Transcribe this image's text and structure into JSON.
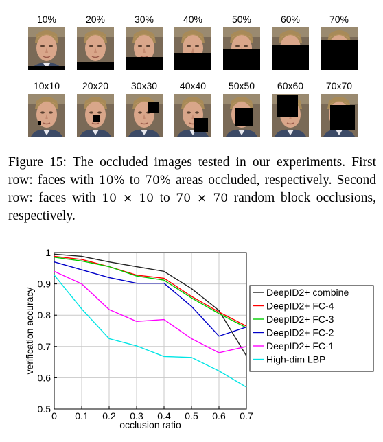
{
  "figure": {
    "rows": [
      {
        "name": "area-occlusion",
        "items": [
          {
            "label": "10%",
            "occlusion": {
              "kind": "bottom",
              "fraction": 0.1
            }
          },
          {
            "label": "20%",
            "occlusion": {
              "kind": "bottom",
              "fraction": 0.2
            }
          },
          {
            "label": "30%",
            "occlusion": {
              "kind": "bottom",
              "fraction": 0.3
            }
          },
          {
            "label": "40%",
            "occlusion": {
              "kind": "bottom",
              "fraction": 0.4
            }
          },
          {
            "label": "50%",
            "occlusion": {
              "kind": "bottom",
              "fraction": 0.5
            }
          },
          {
            "label": "60%",
            "occlusion": {
              "kind": "bottom",
              "fraction": 0.6
            }
          },
          {
            "label": "70%",
            "occlusion": {
              "kind": "bottom",
              "fraction": 0.7
            }
          }
        ]
      },
      {
        "name": "block-occlusion",
        "items": [
          {
            "label": "10x10",
            "occlusion": {
              "kind": "block",
              "size": 10,
              "fx": 0.28,
              "fy": 0.7
            }
          },
          {
            "label": "20x20",
            "occlusion": {
              "kind": "block",
              "size": 20,
              "fx": 0.55,
              "fy": 0.6
            }
          },
          {
            "label": "30x30",
            "occlusion": {
              "kind": "block",
              "size": 30,
              "fx": 0.85,
              "fy": 0.25
            }
          },
          {
            "label": "40x40",
            "occlusion": {
              "kind": "block",
              "size": 40,
              "fx": 0.85,
              "fy": 0.85
            }
          },
          {
            "label": "50x50",
            "occlusion": {
              "kind": "block",
              "size": 50,
              "fx": 0.6,
              "fy": 0.55
            }
          },
          {
            "label": "60x60",
            "occlusion": {
              "kind": "block",
              "size": 60,
              "fx": 0.3,
              "fy": 0.05
            }
          },
          {
            "label": "70x70",
            "occlusion": {
              "kind": "block",
              "size": 70,
              "fx": 0.8,
              "fy": 0.6
            }
          }
        ]
      }
    ],
    "caption": {
      "lead": "Figure 15: The occluded images tested in our experiments. First row: faces with ",
      "m1": "10%",
      "mid1": " to ",
      "m2": "70%",
      "mid2": " areas occluded, respectively. Second row: faces with ",
      "m3": "10 × 10",
      "mid3": " to ",
      "m4": "70 × 70",
      "tail": " random block occlusions, respectively."
    }
  },
  "chart_data": {
    "type": "line",
    "title": "",
    "xlabel": "occlusion ratio",
    "ylabel": "verification accuracy",
    "x": [
      0,
      0.1,
      0.2,
      0.3,
      0.4,
      0.5,
      0.6,
      0.7
    ],
    "xlim": [
      0,
      0.7
    ],
    "ylim": [
      0.5,
      1
    ],
    "xticks": [
      "0",
      "0.1",
      "0.2",
      "0.3",
      "0.4",
      "0.5",
      "0.6",
      "0.7"
    ],
    "yticks": [
      "0.5",
      "0.6",
      "0.7",
      "0.8",
      "0.9",
      "1"
    ],
    "grid": true,
    "legend_position": "right",
    "series": [
      {
        "name": "DeepID2+ combine",
        "color": "#222222",
        "values": [
          0.995,
          0.988,
          0.97,
          0.955,
          0.94,
          0.885,
          0.815,
          0.67
        ]
      },
      {
        "name": "DeepID2+ FC-4",
        "color": "#ff0000",
        "values": [
          0.988,
          0.978,
          0.955,
          0.928,
          0.918,
          0.86,
          0.81,
          0.765
        ]
      },
      {
        "name": "DeepID2+ FC-3",
        "color": "#00cc00",
        "values": [
          0.985,
          0.973,
          0.955,
          0.925,
          0.912,
          0.855,
          0.805,
          0.76
        ]
      },
      {
        "name": "DeepID2+ FC-2",
        "color": "#0000c8",
        "values": [
          0.97,
          0.945,
          0.92,
          0.902,
          0.902,
          0.828,
          0.733,
          0.762
        ]
      },
      {
        "name": "DeepID2+ FC-1",
        "color": "#ff00ff",
        "values": [
          0.94,
          0.9,
          0.818,
          0.78,
          0.786,
          0.725,
          0.68,
          0.7
        ]
      },
      {
        "name": "High-dim LBP",
        "color": "#00e5e5",
        "values": [
          0.928,
          0.82,
          0.725,
          0.702,
          0.668,
          0.665,
          0.622,
          0.57
        ]
      }
    ]
  }
}
